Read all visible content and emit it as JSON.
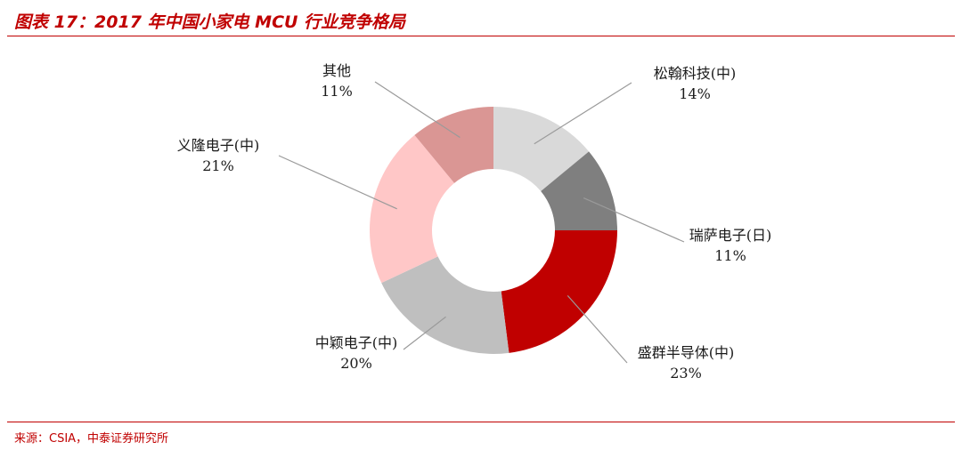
{
  "figure": {
    "title": "图表 17：2017 年中国小家电 MCU 行业竞争格局",
    "source": "来源：CSIA，中泰证券研究所"
  },
  "chart_data": {
    "type": "pie",
    "donut": true,
    "slices": [
      {
        "name": "松翰科技(中)",
        "value": 14,
        "value_label": "14%",
        "color": "#d9d9d9"
      },
      {
        "name": "瑞萨电子(日)",
        "value": 11,
        "value_label": "11%",
        "color": "#7f7f7f"
      },
      {
        "name": "盛群半导体(中)",
        "value": 23,
        "value_label": "23%",
        "color": "#c00000"
      },
      {
        "name": "中颖电子(中)",
        "value": 20,
        "value_label": "20%",
        "color": "#bfbfbf"
      },
      {
        "name": "义隆电子(中)",
        "value": 21,
        "value_label": "21%",
        "color": "#ffc7c7"
      },
      {
        "name": "其他",
        "value": 11,
        "value_label": "11%",
        "color": "#da9694"
      }
    ],
    "start": "12 o'clock",
    "direction": "clockwise",
    "legend": "none",
    "labels": "outside with leader lines"
  }
}
